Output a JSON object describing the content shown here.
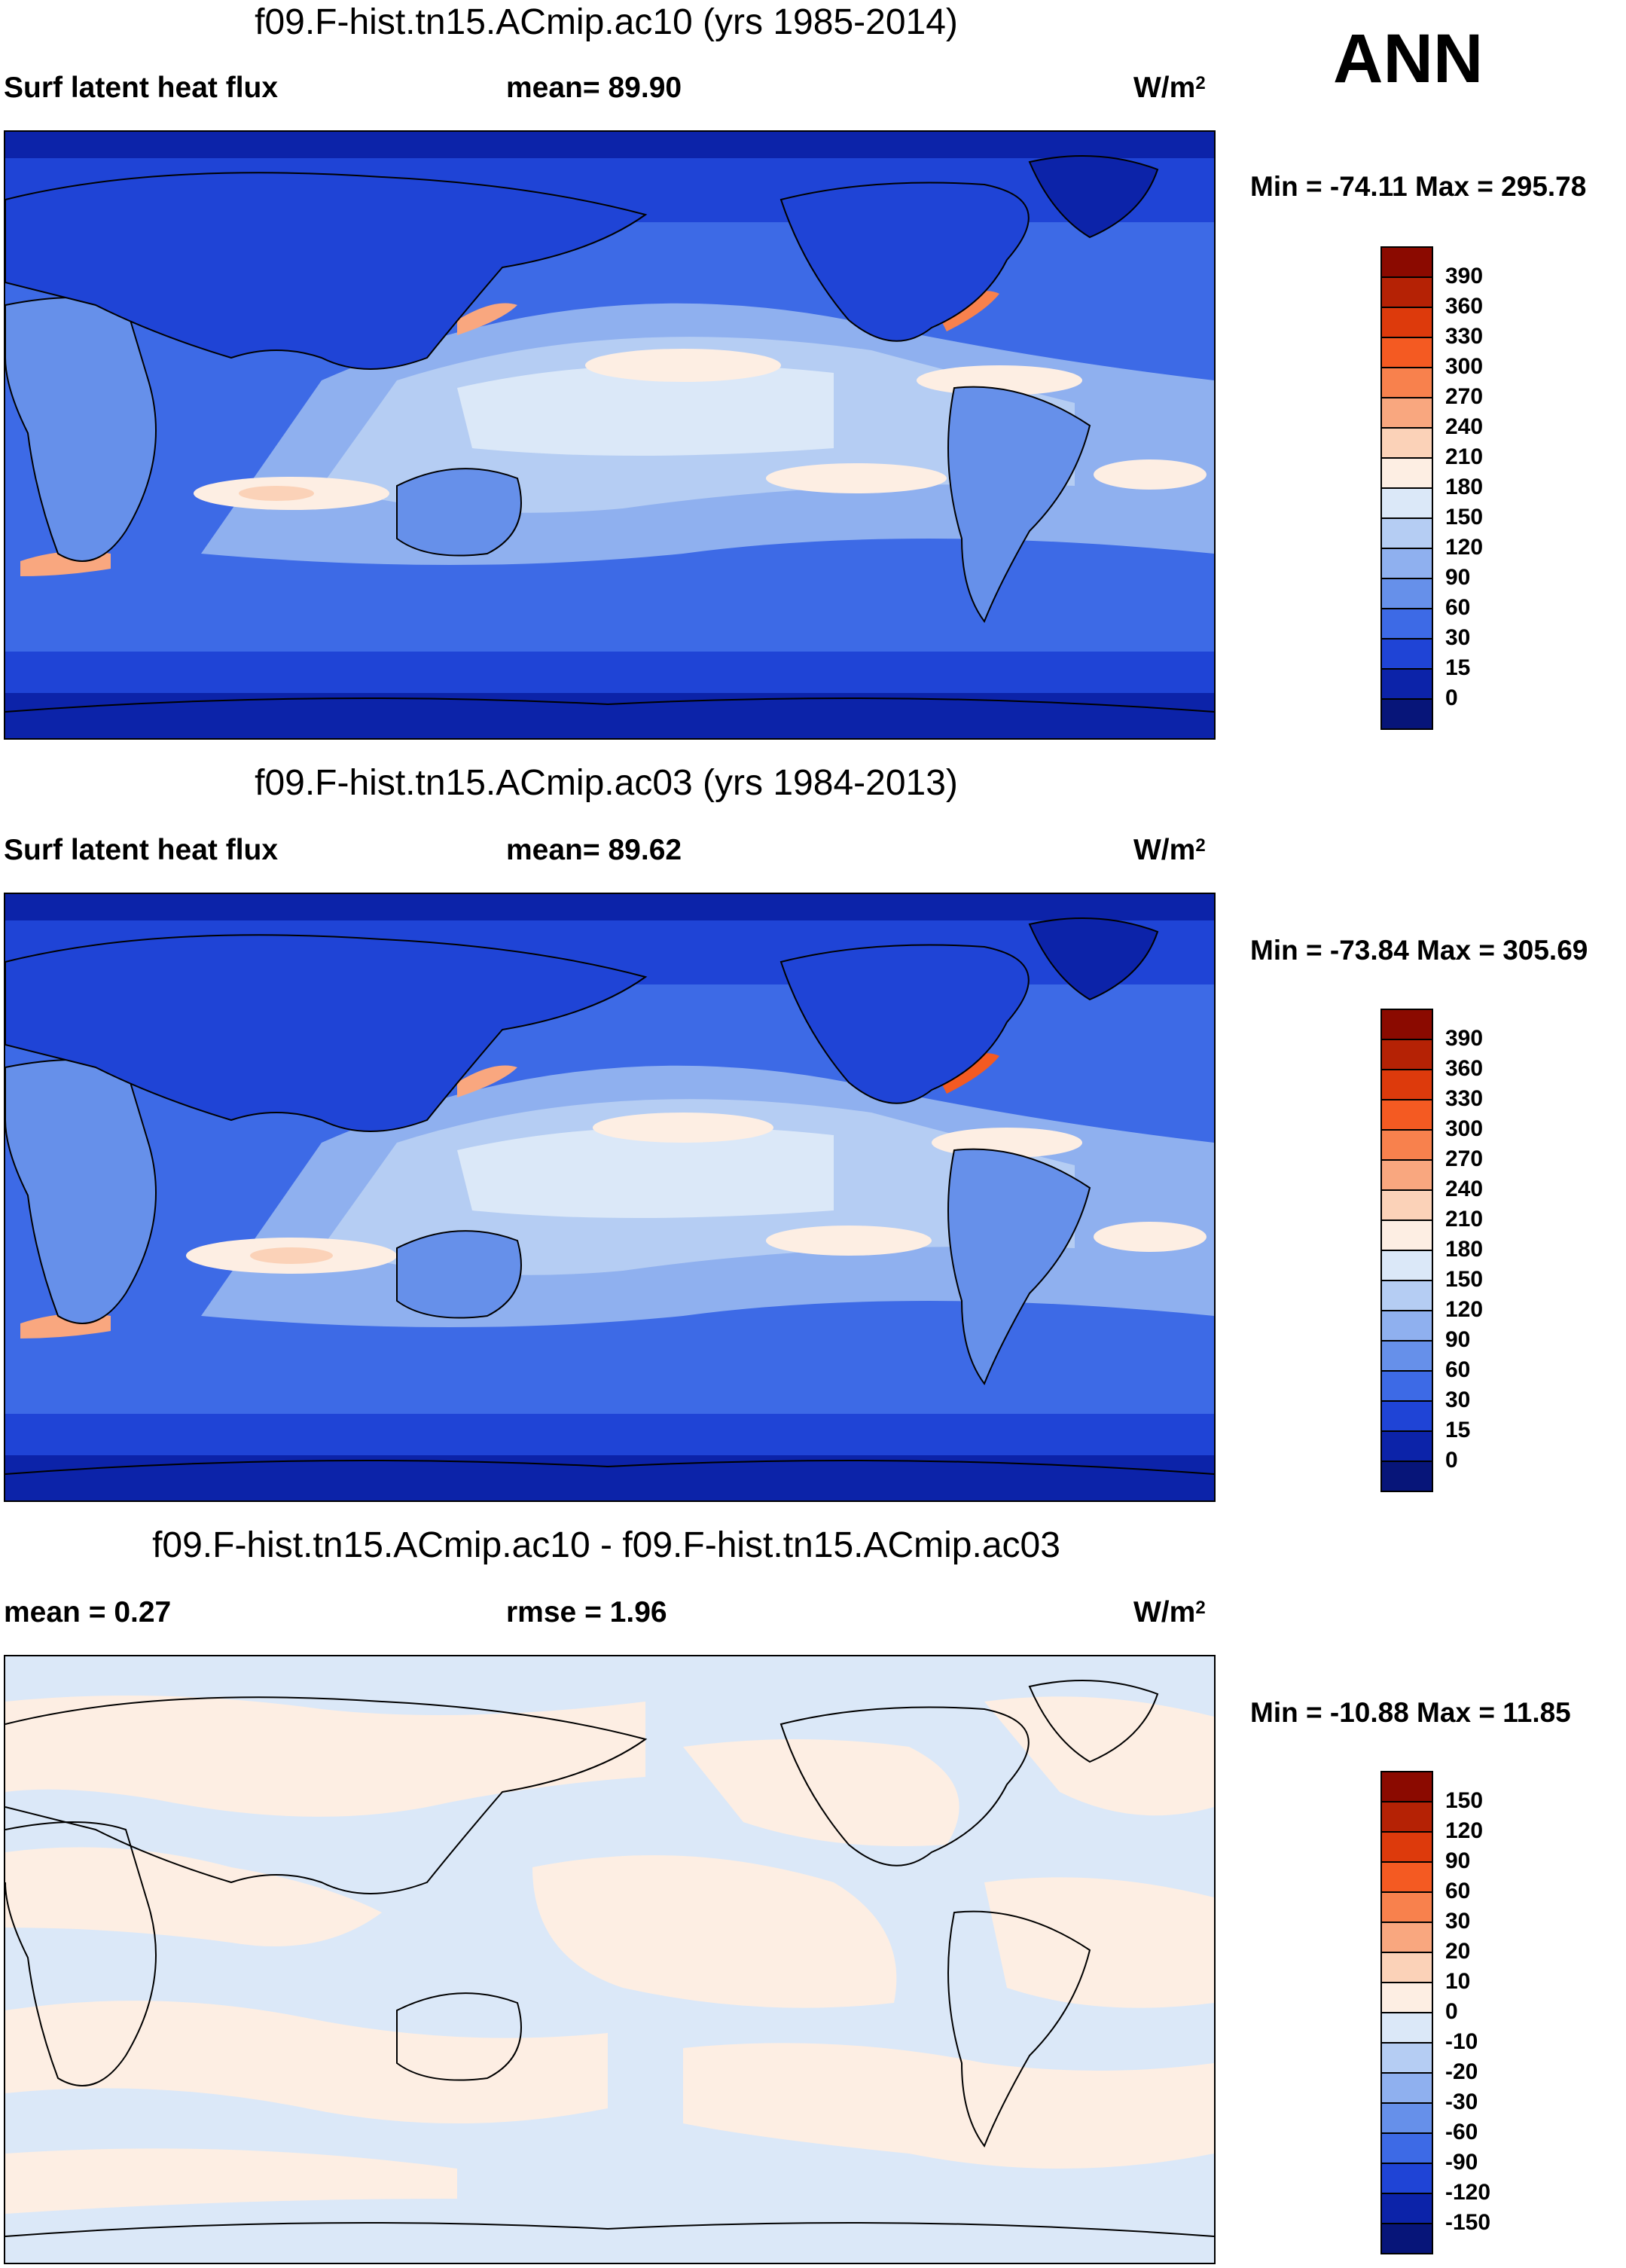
{
  "season": "ANN",
  "panels": [
    {
      "title": "f09.F-hist.tn15.ACmip.ac10 (yrs 1985-2014)",
      "left_label": "Surf latent heat flux",
      "mid_label": "mean=  89.90",
      "units": "W/m",
      "units_exp": "2",
      "minmax": "Min = -74.11 Max = 295.78"
    },
    {
      "title": "f09.F-hist.tn15.ACmip.ac03 (yrs 1984-2013)",
      "left_label": "Surf latent heat flux",
      "mid_label": "mean=  89.62",
      "units": "W/m",
      "units_exp": "2",
      "minmax": "Min = -73.84 Max = 305.69"
    },
    {
      "title": "f09.F-hist.tn15.ACmip.ac10 - f09.F-hist.tn15.ACmip.ac03",
      "left_label": "mean =   0.27",
      "mid_label": "rmse =   1.96",
      "units": "W/m",
      "units_exp": "2",
      "minmax": "Min = -10.88 Max =  11.85"
    }
  ],
  "colorbars": [
    {
      "labels": [
        "390",
        "360",
        "330",
        "300",
        "270",
        "240",
        "210",
        "180",
        "150",
        "120",
        "90",
        "60",
        "30",
        "15",
        "0"
      ],
      "colors": [
        "#8b0a00",
        "#b52205",
        "#dd3a0c",
        "#f45a22",
        "#f8814d",
        "#f9a77f",
        "#fbd2b8",
        "#fdeee3",
        "#dbe8f8",
        "#b5cdf3",
        "#8fb0ef",
        "#6690ea",
        "#3d6ae6",
        "#1f44d6",
        "#0c23a9",
        "#071579"
      ]
    },
    {
      "labels": [
        "390",
        "360",
        "330",
        "300",
        "270",
        "240",
        "210",
        "180",
        "150",
        "120",
        "90",
        "60",
        "30",
        "15",
        "0"
      ],
      "colors": [
        "#8b0a00",
        "#b52205",
        "#dd3a0c",
        "#f45a22",
        "#f8814d",
        "#f9a77f",
        "#fbd2b8",
        "#fdeee3",
        "#dbe8f8",
        "#b5cdf3",
        "#8fb0ef",
        "#6690ea",
        "#3d6ae6",
        "#1f44d6",
        "#0c23a9",
        "#071579"
      ]
    },
    {
      "labels": [
        "150",
        "120",
        "90",
        "60",
        "30",
        "20",
        "10",
        "0",
        "-10",
        "-20",
        "-30",
        "-60",
        "-90",
        "-120",
        "-150"
      ],
      "colors": [
        "#8b0a00",
        "#b52205",
        "#dd3a0c",
        "#f45a22",
        "#f8814d",
        "#f9a77f",
        "#fbd2b8",
        "#fdeee3",
        "#dbe8f8",
        "#b5cdf3",
        "#8fb0ef",
        "#6690ea",
        "#3d6ae6",
        "#1f44d6",
        "#0c23a9",
        "#071579"
      ]
    }
  ]
}
